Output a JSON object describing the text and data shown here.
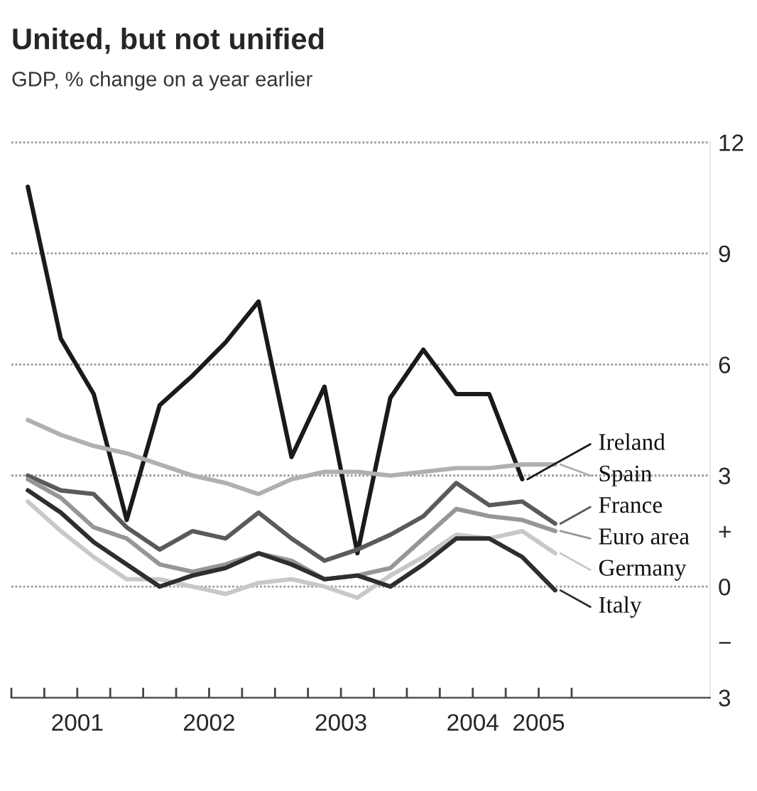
{
  "chart_data": {
    "type": "line",
    "title": "United, but not unified",
    "subtitle": "GDP, % change on a year earlier",
    "x": [
      2001.125,
      2001.375,
      2001.625,
      2001.875,
      2002.125,
      2002.375,
      2002.625,
      2002.875,
      2003.125,
      2003.375,
      2003.625,
      2003.875,
      2004.125,
      2004.375,
      2004.625,
      2004.875,
      2005.125
    ],
    "series": [
      {
        "name": "Ireland",
        "color": "#1a1a1a",
        "values": [
          10.8,
          6.7,
          5.2,
          1.8,
          4.9,
          5.7,
          6.6,
          7.7,
          3.5,
          5.4,
          0.9,
          5.1,
          6.4,
          5.2,
          5.2,
          2.9,
          null
        ]
      },
      {
        "name": "Spain",
        "color": "#b0b0b0",
        "values": [
          4.5,
          4.1,
          3.8,
          3.6,
          3.3,
          3.0,
          2.8,
          2.5,
          2.9,
          3.1,
          3.1,
          3.0,
          3.1,
          3.2,
          3.2,
          3.3,
          3.3
        ]
      },
      {
        "name": "France",
        "color": "#5a5a5a",
        "values": [
          3.0,
          2.6,
          2.5,
          1.6,
          1.0,
          1.5,
          1.3,
          2.0,
          1.3,
          0.7,
          1.0,
          1.4,
          1.9,
          2.8,
          2.2,
          2.3,
          1.7
        ]
      },
      {
        "name": "Euro area",
        "color": "#969696",
        "values": [
          2.9,
          2.4,
          1.6,
          1.3,
          0.6,
          0.4,
          0.6,
          0.9,
          0.7,
          0.2,
          0.3,
          0.5,
          1.3,
          2.1,
          1.9,
          1.8,
          1.5
        ]
      },
      {
        "name": "Germany",
        "color": "#c8c8c8",
        "values": [
          2.3,
          1.5,
          0.8,
          0.2,
          0.2,
          0.0,
          -0.2,
          0.1,
          0.2,
          0.0,
          -0.3,
          0.3,
          0.8,
          1.4,
          1.3,
          1.5,
          0.9
        ]
      },
      {
        "name": "Italy",
        "color": "#2e2e2e",
        "values": [
          2.6,
          2.0,
          1.2,
          0.6,
          0.0,
          0.3,
          0.5,
          0.9,
          0.6,
          0.2,
          0.3,
          0.0,
          0.6,
          1.3,
          1.3,
          0.8,
          -0.1
        ]
      }
    ],
    "xlim": [
      2001,
      2006.3
    ],
    "xticks": [
      {
        "value": 2001,
        "label": null
      },
      {
        "value": 2001.25,
        "label": null
      },
      {
        "value": 2001.5,
        "label": "2001"
      },
      {
        "value": 2001.75,
        "label": null
      },
      {
        "value": 2002,
        "label": null
      },
      {
        "value": 2002.25,
        "label": null
      },
      {
        "value": 2002.5,
        "label": "2002"
      },
      {
        "value": 2002.75,
        "label": null
      },
      {
        "value": 2003,
        "label": null
      },
      {
        "value": 2003.25,
        "label": null
      },
      {
        "value": 2003.5,
        "label": "2003"
      },
      {
        "value": 2003.75,
        "label": null
      },
      {
        "value": 2004,
        "label": null
      },
      {
        "value": 2004.25,
        "label": null
      },
      {
        "value": 2004.5,
        "label": "2004"
      },
      {
        "value": 2004.75,
        "label": null
      },
      {
        "value": 2005,
        "label": "2005"
      },
      {
        "value": 2005.25,
        "label": null
      }
    ],
    "ylim": [
      -3,
      12
    ],
    "yticks": [
      12,
      9,
      6,
      3,
      {
        "value": 1.5,
        "label": "+"
      },
      0,
      {
        "value": -1.5,
        "label": "−"
      },
      {
        "value": -3,
        "label": "3"
      }
    ],
    "grid": "y",
    "legend": "right",
    "marker": "none",
    "line_style": "solid"
  }
}
